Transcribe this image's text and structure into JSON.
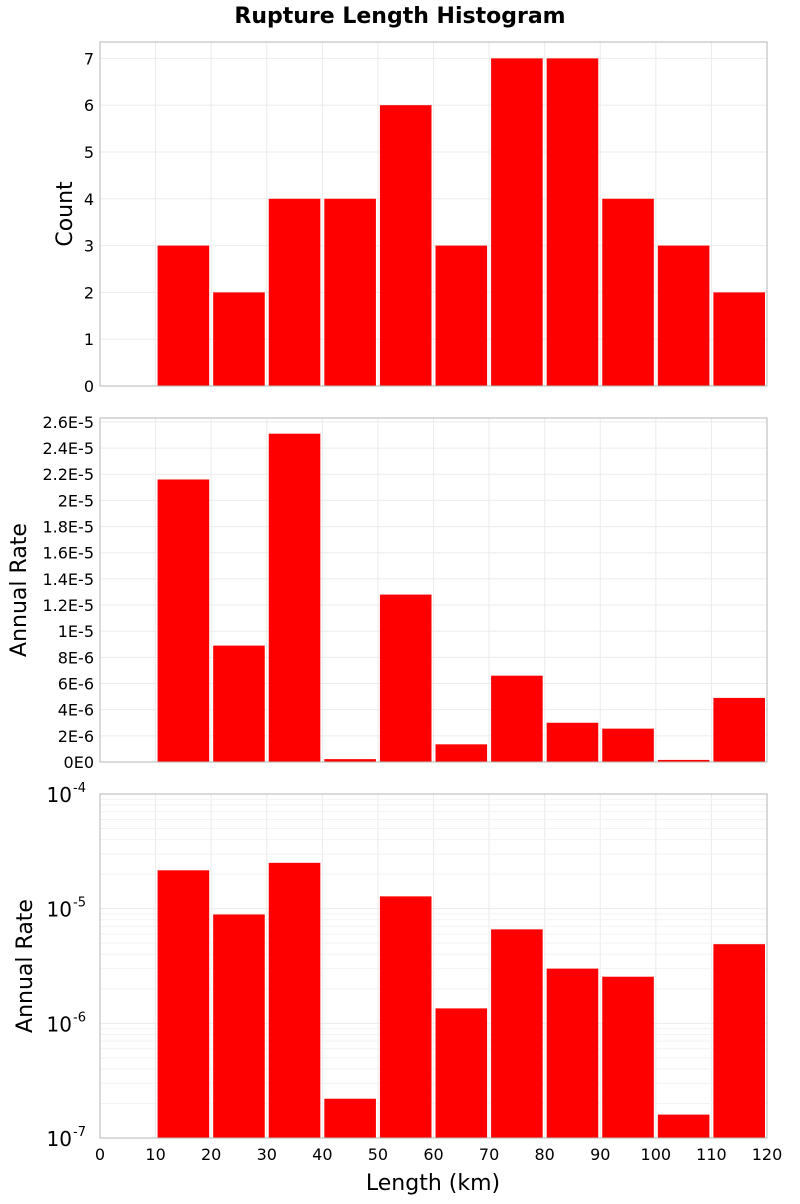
{
  "chart_data": {
    "type": "bar",
    "title": "Rupture Length Histogram",
    "xlabel": "Length (km)",
    "xlim": [
      0,
      120
    ],
    "x_ticks": [
      "0",
      "10",
      "20",
      "30",
      "40",
      "50",
      "60",
      "70",
      "80",
      "90",
      "100",
      "110",
      "120"
    ],
    "bin_width": 10,
    "bin_centers": [
      15,
      25,
      35,
      45,
      55,
      65,
      75,
      85,
      95,
      105,
      115
    ],
    "bar_color": "#ff0000",
    "grid": true,
    "panels": [
      {
        "ylabel": "Count",
        "scale": "linear",
        "ylim": [
          0,
          7.35
        ],
        "y_ticks": [
          {
            "v": 0,
            "label": "0"
          },
          {
            "v": 1,
            "label": "1"
          },
          {
            "v": 2,
            "label": "2"
          },
          {
            "v": 3,
            "label": "3"
          },
          {
            "v": 4,
            "label": "4"
          },
          {
            "v": 5,
            "label": "5"
          },
          {
            "v": 6,
            "label": "6"
          },
          {
            "v": 7,
            "label": "7"
          }
        ],
        "values": [
          3,
          2,
          4,
          4,
          6,
          3,
          7,
          7,
          4,
          3,
          2
        ]
      },
      {
        "ylabel": "Annual Rate",
        "scale": "linear",
        "ylim": [
          0,
          2.63e-05
        ],
        "y_ticks": [
          {
            "v": 0,
            "label": "0E0"
          },
          {
            "v": 2e-06,
            "label": "2E-6"
          },
          {
            "v": 4e-06,
            "label": "4E-6"
          },
          {
            "v": 6e-06,
            "label": "6E-6"
          },
          {
            "v": 8e-06,
            "label": "8E-6"
          },
          {
            "v": 1e-05,
            "label": "1E-5"
          },
          {
            "v": 1.2e-05,
            "label": "1.2E-5"
          },
          {
            "v": 1.4e-05,
            "label": "1.4E-5"
          },
          {
            "v": 1.6e-05,
            "label": "1.6E-5"
          },
          {
            "v": 1.8e-05,
            "label": "1.8E-5"
          },
          {
            "v": 2e-05,
            "label": "2E-5"
          },
          {
            "v": 2.2e-05,
            "label": "2.2E-5"
          },
          {
            "v": 2.4e-05,
            "label": "2.4E-5"
          },
          {
            "v": 2.6e-05,
            "label": "2.6E-5"
          }
        ],
        "values": [
          2.16e-05,
          8.9e-06,
          2.51e-05,
          2.2e-07,
          1.28e-05,
          1.35e-06,
          6.6e-06,
          3e-06,
          2.55e-06,
          1.6e-07,
          4.9e-06
        ]
      },
      {
        "ylabel": "Annual Rate",
        "scale": "log",
        "ylim": [
          1e-07,
          0.0001
        ],
        "y_ticks": [
          {
            "v": 0.0001,
            "base": "10",
            "exp": "-4"
          },
          {
            "v": 1e-05,
            "base": "10",
            "exp": "-5"
          },
          {
            "v": 1e-06,
            "base": "10",
            "exp": "-6"
          },
          {
            "v": 1e-07,
            "base": "10",
            "exp": "-7"
          }
        ],
        "values": [
          2.16e-05,
          8.9e-06,
          2.51e-05,
          2.2e-07,
          1.28e-05,
          1.35e-06,
          6.6e-06,
          3e-06,
          2.55e-06,
          1.6e-07,
          4.9e-06
        ]
      }
    ]
  }
}
